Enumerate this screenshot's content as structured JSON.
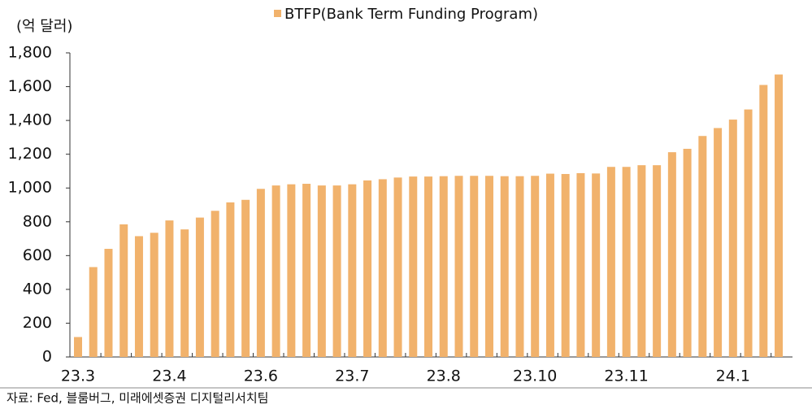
{
  "chart_data": {
    "type": "bar",
    "y_label": "(억 달러)",
    "source": "자료: Fed, 블룸버그, 미래에셋증권 디지털리서치팀",
    "categories": [
      "23.3",
      null,
      null,
      null,
      null,
      null,
      "23.4",
      null,
      null,
      null,
      null,
      null,
      "23.6",
      null,
      null,
      null,
      null,
      null,
      "23.7",
      null,
      null,
      null,
      null,
      null,
      "23.8",
      null,
      null,
      null,
      null,
      null,
      "23.10",
      null,
      null,
      null,
      null,
      null,
      "23.11",
      null,
      null,
      null,
      null,
      null,
      null,
      "24.1",
      null,
      null,
      null
    ],
    "series": [
      {
        "name": "BTFP(Bank Term Funding Program)",
        "color": "#f1b26c",
        "values": [
          118,
          532,
          640,
          785,
          715,
          735,
          808,
          755,
          825,
          865,
          915,
          930,
          995,
          1015,
          1022,
          1025,
          1015,
          1015,
          1022,
          1045,
          1052,
          1062,
          1068,
          1068,
          1070,
          1072,
          1072,
          1072,
          1070,
          1070,
          1072,
          1085,
          1083,
          1088,
          1086,
          1125,
          1125,
          1135,
          1135,
          1212,
          1232,
          1308,
          1355,
          1405,
          1465,
          1610,
          1672
        ]
      }
    ],
    "ylim": [
      0,
      1800
    ],
    "yticks": [
      0,
      200,
      400,
      600,
      800,
      {
        "value": 1000,
        "label": "1,000"
      },
      {
        "value": 1200,
        "label": "1,200"
      },
      {
        "value": 1400,
        "label": "1,400"
      },
      {
        "value": 1600,
        "label": "1,600"
      },
      {
        "value": 1800,
        "label": "1,800"
      }
    ]
  }
}
